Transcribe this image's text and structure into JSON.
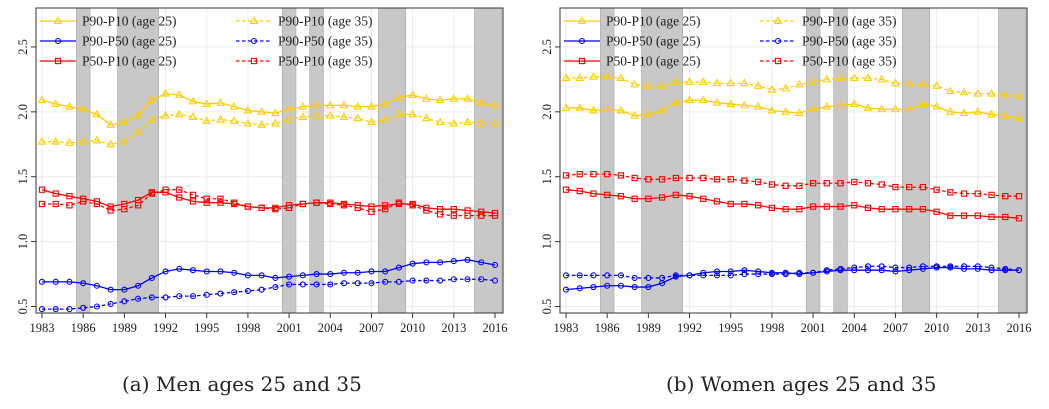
{
  "chart_data": [
    {
      "type": "line",
      "caption": "(a) Men ages 25 and 35",
      "x": [
        1983,
        1984,
        1985,
        1986,
        1987,
        1988,
        1989,
        1990,
        1991,
        1992,
        1993,
        1994,
        1995,
        1996,
        1997,
        1998,
        1999,
        2000,
        2001,
        2002,
        2003,
        2004,
        2005,
        2006,
        2007,
        2008,
        2009,
        2010,
        2011,
        2012,
        2013,
        2014,
        2015,
        2016
      ],
      "xticks": [
        1983,
        1986,
        1989,
        1992,
        1995,
        1998,
        2001,
        2004,
        2007,
        2010,
        2013,
        2016
      ],
      "xlim": [
        1983,
        2016
      ],
      "ylim": [
        0.45,
        2.8
      ],
      "yticks": [
        0.5,
        1.0,
        1.5,
        2.0,
        2.5
      ],
      "ytick_labels": [
        "0.5",
        "1.0",
        "1.5",
        "2.0",
        "2.5"
      ],
      "grid": true,
      "legend_position": "top-left",
      "recession_bands": [
        [
          1985.5,
          1986.5
        ],
        [
          1988.5,
          1991.5
        ],
        [
          2000.5,
          2001.5
        ],
        [
          2002.5,
          2003.5
        ],
        [
          2007.5,
          2009.5
        ],
        [
          2014.5,
          2016.5
        ]
      ],
      "series": [
        {
          "name": "P90-P10 (age 25)",
          "color": "#FFCC00",
          "marker": "triangle",
          "dash": "solid",
          "values": [
            2.09,
            2.06,
            2.04,
            2.02,
            1.98,
            1.9,
            1.92,
            1.97,
            2.09,
            2.14,
            2.13,
            2.08,
            2.06,
            2.07,
            2.04,
            2.01,
            2.0,
            1.99,
            2.02,
            2.04,
            2.05,
            2.05,
            2.05,
            2.04,
            2.04,
            2.06,
            2.11,
            2.13,
            2.1,
            2.09,
            2.1,
            2.1,
            2.07,
            2.05
          ]
        },
        {
          "name": "P90-P10 (age 35)",
          "color": "#FFCC00",
          "marker": "triangle",
          "dash": "dashed",
          "values": [
            1.77,
            1.77,
            1.76,
            1.77,
            1.78,
            1.75,
            1.77,
            1.84,
            1.94,
            1.97,
            1.98,
            1.96,
            1.93,
            1.94,
            1.93,
            1.91,
            1.9,
            1.91,
            1.94,
            1.96,
            1.97,
            1.97,
            1.96,
            1.95,
            1.92,
            1.94,
            1.98,
            1.98,
            1.95,
            1.92,
            1.91,
            1.92,
            1.91,
            1.91
          ]
        },
        {
          "name": "P90-P50 (age 25)",
          "color": "#0000FF",
          "marker": "circle",
          "dash": "solid",
          "values": [
            0.69,
            0.69,
            0.69,
            0.68,
            0.66,
            0.63,
            0.63,
            0.66,
            0.72,
            0.77,
            0.79,
            0.78,
            0.77,
            0.77,
            0.76,
            0.74,
            0.74,
            0.72,
            0.73,
            0.74,
            0.75,
            0.75,
            0.76,
            0.76,
            0.77,
            0.77,
            0.8,
            0.83,
            0.84,
            0.84,
            0.85,
            0.86,
            0.84,
            0.82
          ]
        },
        {
          "name": "P90-P50 (age 35)",
          "color": "#0000FF",
          "marker": "circle",
          "dash": "dashed",
          "values": [
            0.48,
            0.48,
            0.48,
            0.49,
            0.5,
            0.52,
            0.54,
            0.56,
            0.57,
            0.57,
            0.58,
            0.58,
            0.59,
            0.6,
            0.61,
            0.62,
            0.63,
            0.65,
            0.67,
            0.67,
            0.67,
            0.67,
            0.68,
            0.68,
            0.68,
            0.69,
            0.69,
            0.7,
            0.7,
            0.7,
            0.71,
            0.71,
            0.71,
            0.7
          ]
        },
        {
          "name": "P50-P10 (age 25)",
          "color": "#FF0000",
          "marker": "square",
          "dash": "solid",
          "values": [
            1.4,
            1.37,
            1.35,
            1.33,
            1.31,
            1.27,
            1.29,
            1.32,
            1.38,
            1.38,
            1.34,
            1.31,
            1.3,
            1.3,
            1.29,
            1.27,
            1.26,
            1.26,
            1.28,
            1.29,
            1.3,
            1.3,
            1.29,
            1.28,
            1.27,
            1.28,
            1.29,
            1.29,
            1.26,
            1.25,
            1.25,
            1.24,
            1.23,
            1.22
          ]
        },
        {
          "name": "P50-P10 (age 35)",
          "color": "#FF0000",
          "marker": "square",
          "dash": "dashed",
          "values": [
            1.29,
            1.29,
            1.28,
            1.31,
            1.29,
            1.24,
            1.25,
            1.28,
            1.37,
            1.4,
            1.4,
            1.36,
            1.33,
            1.33,
            1.3,
            1.27,
            1.26,
            1.25,
            1.26,
            1.29,
            1.3,
            1.29,
            1.28,
            1.26,
            1.23,
            1.25,
            1.3,
            1.28,
            1.24,
            1.21,
            1.2,
            1.2,
            1.2,
            1.2
          ]
        }
      ]
    },
    {
      "type": "line",
      "caption": "(b) Women ages 25 and 35",
      "x": [
        1983,
        1984,
        1985,
        1986,
        1987,
        1988,
        1989,
        1990,
        1991,
        1992,
        1993,
        1994,
        1995,
        1996,
        1997,
        1998,
        1999,
        2000,
        2001,
        2002,
        2003,
        2004,
        2005,
        2006,
        2007,
        2008,
        2009,
        2010,
        2011,
        2012,
        2013,
        2014,
        2015,
        2016
      ],
      "xticks": [
        1983,
        1986,
        1989,
        1992,
        1995,
        1998,
        2001,
        2004,
        2007,
        2010,
        2013,
        2016
      ],
      "xlim": [
        1983,
        2016
      ],
      "ylim": [
        0.45,
        2.8
      ],
      "yticks": [
        0.5,
        1.0,
        1.5,
        2.0,
        2.5
      ],
      "ytick_labels": [
        "0.5",
        "1.0",
        "1.5",
        "2.0",
        "2.5"
      ],
      "grid": true,
      "legend_position": "top-left",
      "recession_bands": [
        [
          1985.5,
          1986.5
        ],
        [
          1988.5,
          1991.5
        ],
        [
          2000.5,
          2001.5
        ],
        [
          2002.5,
          2003.5
        ],
        [
          2007.5,
          2009.5
        ],
        [
          2014.5,
          2016.5
        ]
      ],
      "series": [
        {
          "name": "P90-P10 (age 25)",
          "color": "#FFCC00",
          "marker": "triangle",
          "dash": "solid",
          "values": [
            2.03,
            2.03,
            2.01,
            2.02,
            2.01,
            1.97,
            1.98,
            2.01,
            2.07,
            2.09,
            2.09,
            2.07,
            2.06,
            2.05,
            2.04,
            2.01,
            2.0,
            1.99,
            2.02,
            2.04,
            2.05,
            2.06,
            2.03,
            2.02,
            2.02,
            2.02,
            2.06,
            2.04,
            2.0,
            1.99,
            2.0,
            1.98,
            1.97,
            1.95
          ]
        },
        {
          "name": "P90-P10 (age 35)",
          "color": "#FFCC00",
          "marker": "triangle",
          "dash": "dashed",
          "values": [
            2.26,
            2.26,
            2.27,
            2.27,
            2.26,
            2.21,
            2.2,
            2.2,
            2.23,
            2.23,
            2.23,
            2.22,
            2.22,
            2.22,
            2.2,
            2.17,
            2.18,
            2.21,
            2.23,
            2.25,
            2.26,
            2.26,
            2.26,
            2.25,
            2.22,
            2.22,
            2.21,
            2.2,
            2.16,
            2.15,
            2.14,
            2.14,
            2.13,
            2.12
          ]
        },
        {
          "name": "P90-P50 (age 25)",
          "color": "#0000FF",
          "marker": "circle",
          "dash": "solid",
          "values": [
            0.63,
            0.64,
            0.65,
            0.66,
            0.66,
            0.65,
            0.65,
            0.68,
            0.73,
            0.74,
            0.76,
            0.77,
            0.77,
            0.78,
            0.77,
            0.76,
            0.76,
            0.75,
            0.76,
            0.77,
            0.78,
            0.78,
            0.78,
            0.78,
            0.77,
            0.78,
            0.79,
            0.8,
            0.8,
            0.79,
            0.79,
            0.78,
            0.78,
            0.78
          ]
        },
        {
          "name": "P90-P50 (age 35)",
          "color": "#0000FF",
          "marker": "circle",
          "dash": "dashed",
          "values": [
            0.74,
            0.74,
            0.74,
            0.74,
            0.74,
            0.72,
            0.72,
            0.72,
            0.74,
            0.74,
            0.74,
            0.74,
            0.74,
            0.75,
            0.75,
            0.75,
            0.75,
            0.76,
            0.76,
            0.78,
            0.79,
            0.8,
            0.81,
            0.81,
            0.8,
            0.8,
            0.81,
            0.81,
            0.81,
            0.81,
            0.81,
            0.8,
            0.79,
            0.78
          ]
        },
        {
          "name": "P50-P10 (age 25)",
          "color": "#FF0000",
          "marker": "square",
          "dash": "solid",
          "values": [
            1.4,
            1.39,
            1.37,
            1.36,
            1.35,
            1.33,
            1.33,
            1.34,
            1.36,
            1.35,
            1.33,
            1.31,
            1.29,
            1.29,
            1.28,
            1.26,
            1.25,
            1.25,
            1.27,
            1.27,
            1.27,
            1.28,
            1.26,
            1.25,
            1.25,
            1.25,
            1.25,
            1.23,
            1.2,
            1.2,
            1.2,
            1.19,
            1.19,
            1.18
          ]
        },
        {
          "name": "P50-P10 (age 35)",
          "color": "#FF0000",
          "marker": "square",
          "dash": "dashed",
          "values": [
            1.51,
            1.52,
            1.52,
            1.52,
            1.51,
            1.49,
            1.48,
            1.48,
            1.49,
            1.49,
            1.49,
            1.48,
            1.48,
            1.47,
            1.46,
            1.44,
            1.43,
            1.43,
            1.45,
            1.45,
            1.45,
            1.46,
            1.45,
            1.44,
            1.42,
            1.42,
            1.42,
            1.4,
            1.38,
            1.37,
            1.37,
            1.36,
            1.35,
            1.35
          ]
        }
      ]
    }
  ]
}
